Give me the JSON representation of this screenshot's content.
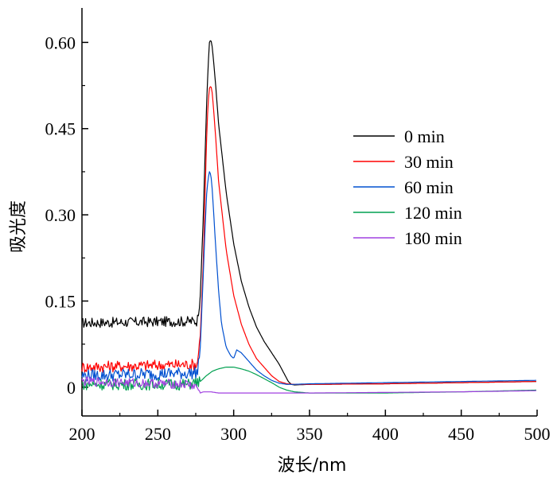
{
  "chart_data": {
    "type": "line",
    "xlabel": "波长/nm",
    "ylabel": "吸光度",
    "xlim": [
      200,
      500
    ],
    "ylim": [
      -0.05,
      0.66
    ],
    "x_ticks": [
      200,
      250,
      300,
      350,
      400,
      450,
      500
    ],
    "x_tick_labels": [
      "200",
      "250",
      "300",
      "350",
      "400",
      "450",
      "500"
    ],
    "y_ticks": [
      0,
      0.15,
      0.3,
      0.45,
      0.6
    ],
    "y_tick_labels": [
      "0",
      "0.15",
      "0.30",
      "0.45",
      "0.60"
    ],
    "legend_position": "right",
    "grid": false,
    "series": [
      {
        "name": "0 min",
        "color": "#000000",
        "x": [
          200,
          276,
          278,
          280,
          282,
          283,
          284,
          285,
          286,
          288,
          290,
          295,
          300,
          305,
          310,
          315,
          320,
          325,
          330,
          333,
          336,
          338,
          340,
          350,
          400,
          450,
          500
        ],
        "y": [
          0.112,
          0.115,
          0.16,
          0.3,
          0.48,
          0.55,
          0.6,
          0.605,
          0.59,
          0.53,
          0.46,
          0.34,
          0.25,
          0.185,
          0.14,
          0.105,
          0.08,
          0.06,
          0.04,
          0.025,
          0.01,
          0.005,
          0.004,
          0.005,
          0.006,
          0.008,
          0.01
        ]
      },
      {
        "name": "30 min",
        "color": "#ff0000",
        "x": [
          200,
          276,
          278,
          280,
          282,
          283,
          284,
          285,
          286,
          288,
          290,
          295,
          300,
          305,
          310,
          315,
          320,
          325,
          330,
          335,
          340,
          350,
          400,
          450,
          500
        ],
        "y": [
          0.035,
          0.04,
          0.09,
          0.22,
          0.42,
          0.49,
          0.52,
          0.525,
          0.51,
          0.44,
          0.36,
          0.24,
          0.16,
          0.11,
          0.075,
          0.05,
          0.035,
          0.02,
          0.01,
          0.006,
          0.005,
          0.005,
          0.006,
          0.008,
          0.01
        ]
      },
      {
        "name": "60 min",
        "color": "#0050d0",
        "x": [
          200,
          276,
          278,
          280,
          282,
          283,
          284,
          285,
          286,
          288,
          290,
          292,
          295,
          298,
          300,
          302,
          305,
          310,
          315,
          320,
          325,
          330,
          335,
          340,
          350,
          400,
          450,
          500
        ],
        "y": [
          0.02,
          0.025,
          0.07,
          0.2,
          0.33,
          0.36,
          0.375,
          0.37,
          0.34,
          0.25,
          0.17,
          0.11,
          0.07,
          0.055,
          0.05,
          0.065,
          0.06,
          0.045,
          0.03,
          0.02,
          0.012,
          0.007,
          0.005,
          0.005,
          0.006,
          0.008,
          0.01,
          0.012
        ]
      },
      {
        "name": "120 min",
        "color": "#00a050",
        "x": [
          200,
          270,
          278,
          282,
          286,
          290,
          295,
          300,
          305,
          310,
          315,
          320,
          325,
          330,
          335,
          340,
          350,
          400,
          450,
          500
        ],
        "y": [
          0.005,
          0.005,
          0.01,
          0.02,
          0.028,
          0.032,
          0.035,
          0.035,
          0.032,
          0.028,
          0.022,
          0.015,
          0.008,
          0.0,
          -0.005,
          -0.008,
          -0.01,
          -0.01,
          -0.008,
          -0.005
        ]
      },
      {
        "name": "180 min",
        "color": "#a040e0",
        "x": [
          200,
          270,
          276,
          278,
          280,
          285,
          290,
          300,
          350,
          400,
          450,
          500
        ],
        "y": [
          0.01,
          0.005,
          0.0,
          -0.01,
          -0.008,
          -0.008,
          -0.01,
          -0.01,
          -0.01,
          -0.009,
          -0.008,
          -0.006
        ]
      }
    ]
  }
}
